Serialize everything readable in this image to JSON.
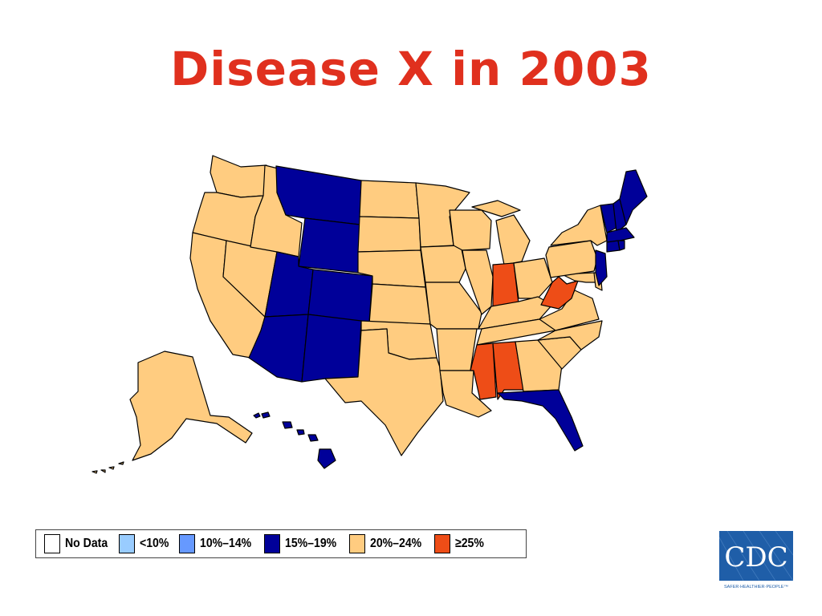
{
  "title": "Disease X in 2003",
  "colors": {
    "title": "#e0301e",
    "no_data": "#ffffff",
    "lt10": "#99ccff",
    "10_14": "#6699ff",
    "15_19": "#000099",
    "20_24": "#ffcc80",
    "ge25": "#ee4d17"
  },
  "legend": [
    {
      "key": "no_data",
      "label": "No Data"
    },
    {
      "key": "lt10",
      "label": "<10%"
    },
    {
      "key": "10_14",
      "label": "10%–14%"
    },
    {
      "key": "15_19",
      "label": "15%–19%"
    },
    {
      "key": "20_24",
      "label": "20%–24%"
    },
    {
      "key": "ge25",
      "label": "≥25%"
    }
  ],
  "states": {
    "WA": "20_24",
    "OR": "20_24",
    "CA": "20_24",
    "NV": "20_24",
    "ID": "20_24",
    "MT": "15_19",
    "WY": "15_19",
    "UT": "15_19",
    "CO": "15_19",
    "AZ": "15_19",
    "NM": "15_19",
    "ND": "20_24",
    "SD": "20_24",
    "NE": "20_24",
    "KS": "20_24",
    "OK": "20_24",
    "TX": "20_24",
    "MN": "20_24",
    "IA": "20_24",
    "MO": "20_24",
    "AR": "20_24",
    "LA": "20_24",
    "WI": "20_24",
    "IL": "20_24",
    "MI": "20_24",
    "IN": "ge25",
    "OH": "20_24",
    "KY": "20_24",
    "TN": "20_24",
    "MS": "ge25",
    "AL": "ge25",
    "GA": "20_24",
    "FL": "15_19",
    "SC": "20_24",
    "NC": "20_24",
    "VA": "20_24",
    "WV": "ge25",
    "MD": "20_24",
    "DE": "20_24",
    "PA": "20_24",
    "NY": "20_24",
    "NJ": "15_19",
    "CT": "15_19",
    "RI": "15_19",
    "MA": "15_19",
    "VT": "15_19",
    "NH": "15_19",
    "ME": "15_19",
    "AK": "20_24",
    "HI": "15_19"
  },
  "logo": {
    "text": "CDC",
    "tagline": "SAFER·HEALTHIER·PEOPLE™",
    "color": "#1f5ea8"
  }
}
